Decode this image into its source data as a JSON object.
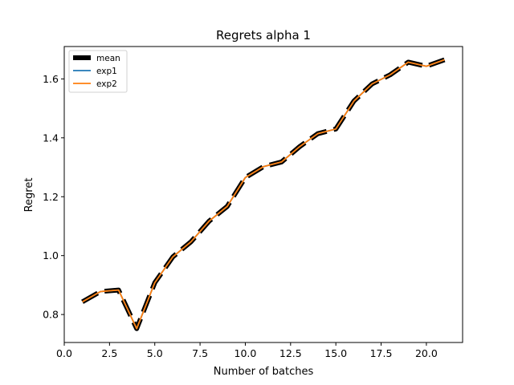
{
  "chart_data": {
    "type": "line",
    "title": "Regrets alpha 1",
    "xlabel": "Number of batches",
    "ylabel": "Regret",
    "xlim": [
      0,
      22
    ],
    "ylim": [
      0.705,
      1.71
    ],
    "xticks": [
      0,
      2.5,
      5,
      7.5,
      10,
      12.5,
      15,
      17.5,
      20
    ],
    "xtick_labels": [
      "0.0",
      "2.5",
      "5.0",
      "7.5",
      "10.0",
      "12.5",
      "15.0",
      "17.5",
      "20.0"
    ],
    "yticks": [
      0.8,
      1.0,
      1.2,
      1.4,
      1.6
    ],
    "ytick_labels": [
      "0.8",
      "1.0",
      "1.2",
      "1.4",
      "1.6"
    ],
    "grid": false,
    "legend_position": "top-left",
    "x": [
      1,
      2,
      3,
      4,
      5,
      6,
      7,
      8,
      9,
      10,
      11,
      12,
      13,
      14,
      15,
      16,
      17,
      18,
      19,
      20,
      21
    ],
    "series": [
      {
        "name": "mean",
        "color": "#000000",
        "style": "dashed-thick",
        "values": [
          0.843,
          0.878,
          0.883,
          0.752,
          0.908,
          0.996,
          1.047,
          1.117,
          1.167,
          1.265,
          1.302,
          1.318,
          1.37,
          1.414,
          1.43,
          1.525,
          1.583,
          1.614,
          1.657,
          1.643,
          1.665
        ]
      },
      {
        "name": "exp1",
        "color": "#1f77b4",
        "style": "solid",
        "values": [
          0.843,
          0.878,
          0.883,
          0.752,
          0.908,
          0.996,
          1.047,
          1.117,
          1.167,
          1.265,
          1.302,
          1.318,
          1.37,
          1.414,
          1.43,
          1.525,
          1.583,
          1.614,
          1.657,
          1.643,
          1.665
        ]
      },
      {
        "name": "exp2",
        "color": "#ff7f0e",
        "style": "solid",
        "values": [
          0.843,
          0.878,
          0.883,
          0.752,
          0.908,
          0.996,
          1.047,
          1.117,
          1.167,
          1.265,
          1.302,
          1.318,
          1.37,
          1.414,
          1.43,
          1.525,
          1.583,
          1.614,
          1.657,
          1.643,
          1.665
        ]
      }
    ]
  }
}
